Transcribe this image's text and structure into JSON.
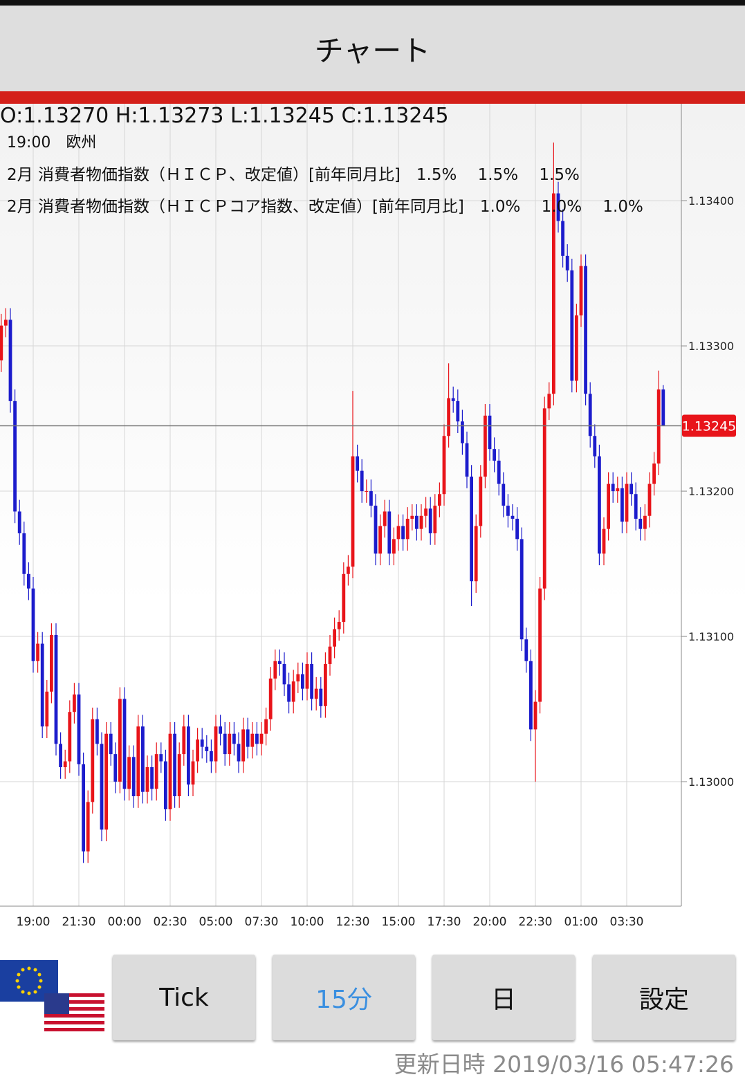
{
  "header": {
    "title": "チャート"
  },
  "info": {
    "ohlc": "O:1.13270 H:1.13273 L:1.13245 C:1.13245",
    "event_time": "19:00　欧州",
    "events": [
      "2月 消費者物価指数（ＨＩＣＰ、改定値）[前年同月比]　1.5%　 1.5%　 1.5%",
      "2月 消費者物価指数（ＨＩＣＰコア指数、改定値）[前年同月比]　1.0%　 1.0%　 1.0%"
    ]
  },
  "chart_data": {
    "type": "candlestick",
    "categories": [
      null,
      null,
      null,
      null,
      null,
      null,
      null,
      "19:00",
      null,
      null,
      null,
      null,
      null,
      null,
      null,
      null,
      null,
      "21:30",
      null,
      null,
      null,
      null,
      null,
      null,
      null,
      null,
      null,
      "00:00",
      null,
      null,
      null,
      null,
      null,
      null,
      null,
      null,
      null,
      "02:30",
      null,
      null,
      null,
      null,
      null,
      null,
      null,
      null,
      null,
      "05:00",
      null,
      null,
      null,
      null,
      null,
      null,
      null,
      null,
      null,
      "07:30",
      null,
      null,
      null,
      null,
      null,
      null,
      null,
      null,
      null,
      "10:00",
      null,
      null,
      null,
      null,
      null,
      null,
      null,
      null,
      null,
      "12:30",
      null,
      null,
      null,
      null,
      null,
      null,
      null,
      null,
      null,
      "15:00",
      null,
      null,
      null,
      null,
      null,
      null,
      null,
      null,
      null,
      "17:30",
      null,
      null,
      null,
      null,
      null,
      null,
      null,
      null,
      null,
      "20:00",
      null,
      null,
      null,
      null,
      null,
      null,
      null,
      null,
      null,
      "22:30",
      null,
      null,
      null,
      null,
      null,
      null,
      null,
      null,
      null,
      "01:00",
      null,
      null,
      null,
      null,
      null,
      null,
      null,
      null,
      null,
      "03:30",
      null,
      null,
      null,
      null,
      null,
      null,
      null,
      null
    ],
    "open": [
      1.1329,
      1.13314,
      1.13318,
      1.13262,
      1.13186,
      1.13171,
      1.13143,
      1.13133,
      1.13083,
      1.13095,
      1.13038,
      1.13062,
      1.13101,
      1.13026,
      1.1301,
      1.13014,
      1.13048,
      1.1306,
      1.13012,
      1.12952,
      1.12986,
      1.13043,
      1.13026,
      1.12967,
      1.13033,
      1.13019,
      1.13,
      1.13057,
      1.12995,
      1.13017,
      1.1299,
      1.13038,
      1.12993,
      1.1301,
      1.12995,
      1.13019,
      1.13014,
      1.12981,
      1.13033,
      1.1299,
      1.13019,
      1.13038,
      1.12998,
      1.13014,
      1.13029,
      1.13024,
      1.13021,
      1.13014,
      1.13038,
      1.13033,
      1.13019,
      1.13033,
      1.13026,
      1.13014,
      1.13036,
      1.13024,
      1.13033,
      1.13026,
      1.13033,
      1.13043,
      1.13071,
      1.13083,
      1.13081,
      1.13067,
      1.13055,
      1.13069,
      1.13074,
      1.13064,
      1.13081,
      1.13057,
      1.13064,
      1.13052,
      1.13081,
      1.13093,
      1.13105,
      1.1311,
      1.13143,
      1.13148,
      1.13224,
      1.13214,
      1.132,
      1.132,
      1.1319,
      1.13157,
      1.13176,
      1.13186,
      1.13157,
      1.13167,
      1.13176,
      1.13167,
      1.13181,
      1.13183,
      1.13174,
      1.13183,
      1.13188,
      1.13171,
      1.1319,
      1.13198,
      1.13238,
      1.13264,
      1.13262,
      1.13248,
      1.13233,
      1.1321,
      1.13138,
      1.13176,
      1.1321,
      1.13252,
      1.13229,
      1.13221,
      1.13205,
      1.1319,
      1.13183,
      1.13181,
      1.13167,
      1.13098,
      1.13083,
      1.13036,
      1.13055,
      1.13133,
      1.13257,
      1.13267,
      1.13405,
      1.13386,
      1.13362,
      1.13352,
      1.13276,
      1.13321,
      1.13355,
      1.13267,
      1.13238,
      1.13224,
      1.13157,
      1.13174,
      1.13205,
      1.132,
      1.13202,
      1.13179,
      1.13205,
      1.13198,
      1.13181,
      1.13174,
      1.13183,
      1.13205,
      1.13219,
      1.1327
    ],
    "high": [
      1.13322,
      1.13326,
      1.13326,
      1.1327,
      1.13194,
      1.13179,
      1.13151,
      1.13141,
      1.13103,
      1.13103,
      1.1307,
      1.13109,
      1.13109,
      1.13034,
      1.13022,
      1.13056,
      1.13068,
      1.13068,
      1.1302,
      1.12994,
      1.13051,
      1.13051,
      1.13034,
      1.13041,
      1.13041,
      1.13027,
      1.13065,
      1.13065,
      1.13025,
      1.13025,
      1.13046,
      1.13046,
      1.13018,
      1.13018,
      1.13027,
      1.13027,
      1.13022,
      1.13041,
      1.13041,
      1.13027,
      1.13046,
      1.13046,
      1.13022,
      1.13037,
      1.13037,
      1.13032,
      1.13029,
      1.13046,
      1.13046,
      1.13041,
      1.13041,
      1.13041,
      1.13034,
      1.13044,
      1.13044,
      1.13041,
      1.13041,
      1.13041,
      1.13051,
      1.13079,
      1.13091,
      1.13091,
      1.13089,
      1.13075,
      1.13077,
      1.13082,
      1.13082,
      1.13089,
      1.13089,
      1.13072,
      1.13072,
      1.13089,
      1.13101,
      1.13113,
      1.13118,
      1.13151,
      1.13156,
      1.13269,
      1.13232,
      1.13222,
      1.13208,
      1.13208,
      1.13198,
      1.13184,
      1.13194,
      1.13194,
      1.13175,
      1.13184,
      1.13184,
      1.13189,
      1.13191,
      1.13191,
      1.13191,
      1.13196,
      1.13196,
      1.13198,
      1.13206,
      1.13246,
      1.13288,
      1.13272,
      1.1327,
      1.13256,
      1.13241,
      1.13218,
      1.13184,
      1.13218,
      1.1326,
      1.1326,
      1.13237,
      1.13229,
      1.13213,
      1.13198,
      1.13191,
      1.13189,
      1.13175,
      1.13106,
      1.13091,
      1.13063,
      1.13141,
      1.13265,
      1.13275,
      1.1344,
      1.13413,
      1.13394,
      1.1337,
      1.1336,
      1.13329,
      1.13363,
      1.13363,
      1.13275,
      1.13246,
      1.13232,
      1.13182,
      1.13213,
      1.13213,
      1.1321,
      1.1321,
      1.13213,
      1.13213,
      1.13206,
      1.13189,
      1.13191,
      1.13213,
      1.13227,
      1.13283,
      1.13273
    ],
    "low": [
      1.13282,
      1.13306,
      1.13254,
      1.13178,
      1.13163,
      1.13135,
      1.13125,
      1.13075,
      1.13075,
      1.1303,
      1.1303,
      1.13054,
      1.13018,
      1.13002,
      1.13002,
      1.13006,
      1.1304,
      1.13004,
      1.12944,
      1.12944,
      1.12978,
      1.13018,
      1.12959,
      1.12959,
      1.13011,
      1.12992,
      1.12992,
      1.12987,
      1.12987,
      1.12982,
      1.12982,
      1.12985,
      1.12985,
      1.12987,
      1.12987,
      1.13006,
      1.12973,
      1.12973,
      1.12982,
      1.12982,
      1.13011,
      1.1299,
      1.1299,
      1.13006,
      1.13016,
      1.13013,
      1.13006,
      1.13006,
      1.13025,
      1.13011,
      1.13011,
      1.13018,
      1.13006,
      1.13006,
      1.13016,
      1.13016,
      1.13018,
      1.13018,
      1.13025,
      1.13035,
      1.13063,
      1.13073,
      1.13059,
      1.13047,
      1.13047,
      1.13061,
      1.13056,
      1.13056,
      1.13049,
      1.13049,
      1.13044,
      1.13044,
      1.13073,
      1.13085,
      1.13097,
      1.13102,
      1.13135,
      1.1314,
      1.13206,
      1.13192,
      1.13192,
      1.13182,
      1.13149,
      1.13149,
      1.13168,
      1.13149,
      1.13149,
      1.13159,
      1.13159,
      1.13159,
      1.13173,
      1.13166,
      1.13166,
      1.13175,
      1.13163,
      1.13163,
      1.13182,
      1.1319,
      1.1323,
      1.13254,
      1.1324,
      1.13225,
      1.13202,
      1.13121,
      1.1313,
      1.13168,
      1.13202,
      1.13221,
      1.13213,
      1.13197,
      1.13182,
      1.13175,
      1.13173,
      1.13159,
      1.1309,
      1.13075,
      1.13028,
      1.13,
      1.13047,
      1.13125,
      1.13249,
      1.13259,
      1.13378,
      1.13354,
      1.13344,
      1.13268,
      1.13268,
      1.13313,
      1.13259,
      1.1323,
      1.13216,
      1.13149,
      1.13149,
      1.13166,
      1.13192,
      1.13192,
      1.13171,
      1.13171,
      1.1319,
      1.13173,
      1.13166,
      1.13166,
      1.13175,
      1.13197,
      1.13211,
      1.13245
    ],
    "close": [
      1.13314,
      1.13318,
      1.13262,
      1.13186,
      1.13171,
      1.13143,
      1.13133,
      1.13083,
      1.13095,
      1.13038,
      1.13062,
      1.13101,
      1.13026,
      1.1301,
      1.13014,
      1.13048,
      1.1306,
      1.13012,
      1.12952,
      1.12986,
      1.13043,
      1.13026,
      1.12967,
      1.13033,
      1.13019,
      1.13,
      1.13057,
      1.12995,
      1.13017,
      1.1299,
      1.13038,
      1.12993,
      1.1301,
      1.12995,
      1.13019,
      1.13014,
      1.12981,
      1.13033,
      1.1299,
      1.13019,
      1.13038,
      1.12998,
      1.13014,
      1.13029,
      1.13024,
      1.13021,
      1.13014,
      1.13038,
      1.13033,
      1.13019,
      1.13033,
      1.13026,
      1.13014,
      1.13036,
      1.13024,
      1.13033,
      1.13026,
      1.13033,
      1.13043,
      1.13071,
      1.13083,
      1.13081,
      1.13067,
      1.13055,
      1.13069,
      1.13074,
      1.13064,
      1.13081,
      1.13057,
      1.13064,
      1.13052,
      1.13081,
      1.13093,
      1.13105,
      1.1311,
      1.13143,
      1.13148,
      1.13224,
      1.13214,
      1.132,
      1.132,
      1.1319,
      1.13157,
      1.13176,
      1.13186,
      1.13157,
      1.13167,
      1.13176,
      1.13167,
      1.13181,
      1.13183,
      1.13174,
      1.13183,
      1.13188,
      1.13171,
      1.1319,
      1.13198,
      1.13238,
      1.13264,
      1.13262,
      1.13248,
      1.13233,
      1.1321,
      1.13138,
      1.13176,
      1.1321,
      1.13252,
      1.13229,
      1.13221,
      1.13205,
      1.1319,
      1.13183,
      1.13181,
      1.13167,
      1.13098,
      1.13083,
      1.13036,
      1.13055,
      1.13133,
      1.13257,
      1.13267,
      1.13405,
      1.13386,
      1.13362,
      1.13352,
      1.13276,
      1.13321,
      1.13355,
      1.13267,
      1.13238,
      1.13224,
      1.13157,
      1.13174,
      1.13205,
      1.132,
      1.13202,
      1.13179,
      1.13205,
      1.13198,
      1.13181,
      1.13174,
      1.13183,
      1.13205,
      1.13219,
      1.1327,
      1.13245
    ],
    "up_color": "#e8141a",
    "down_color": "#1c1ccc",
    "ylim": [
      1.129143,
      1.134667
    ],
    "yticks": [
      {
        "value": 1.13,
        "label": "1.13000"
      },
      {
        "value": 1.131,
        "label": "1.13100"
      },
      {
        "value": 1.132,
        "label": "1.13200"
      },
      {
        "value": 1.133,
        "label": "1.13300"
      },
      {
        "value": 1.134,
        "label": "1.13400"
      }
    ],
    "grid": true,
    "current_price": {
      "value": 1.13245,
      "label": "1.13245"
    }
  },
  "buttons": [
    {
      "label": "Tick",
      "selected": false
    },
    {
      "label": "15分",
      "selected": true
    },
    {
      "label": "日",
      "selected": false
    },
    {
      "label": "設定",
      "selected": false
    }
  ],
  "footer": {
    "updated": "更新日時 2019/03/16 05:47:26"
  }
}
